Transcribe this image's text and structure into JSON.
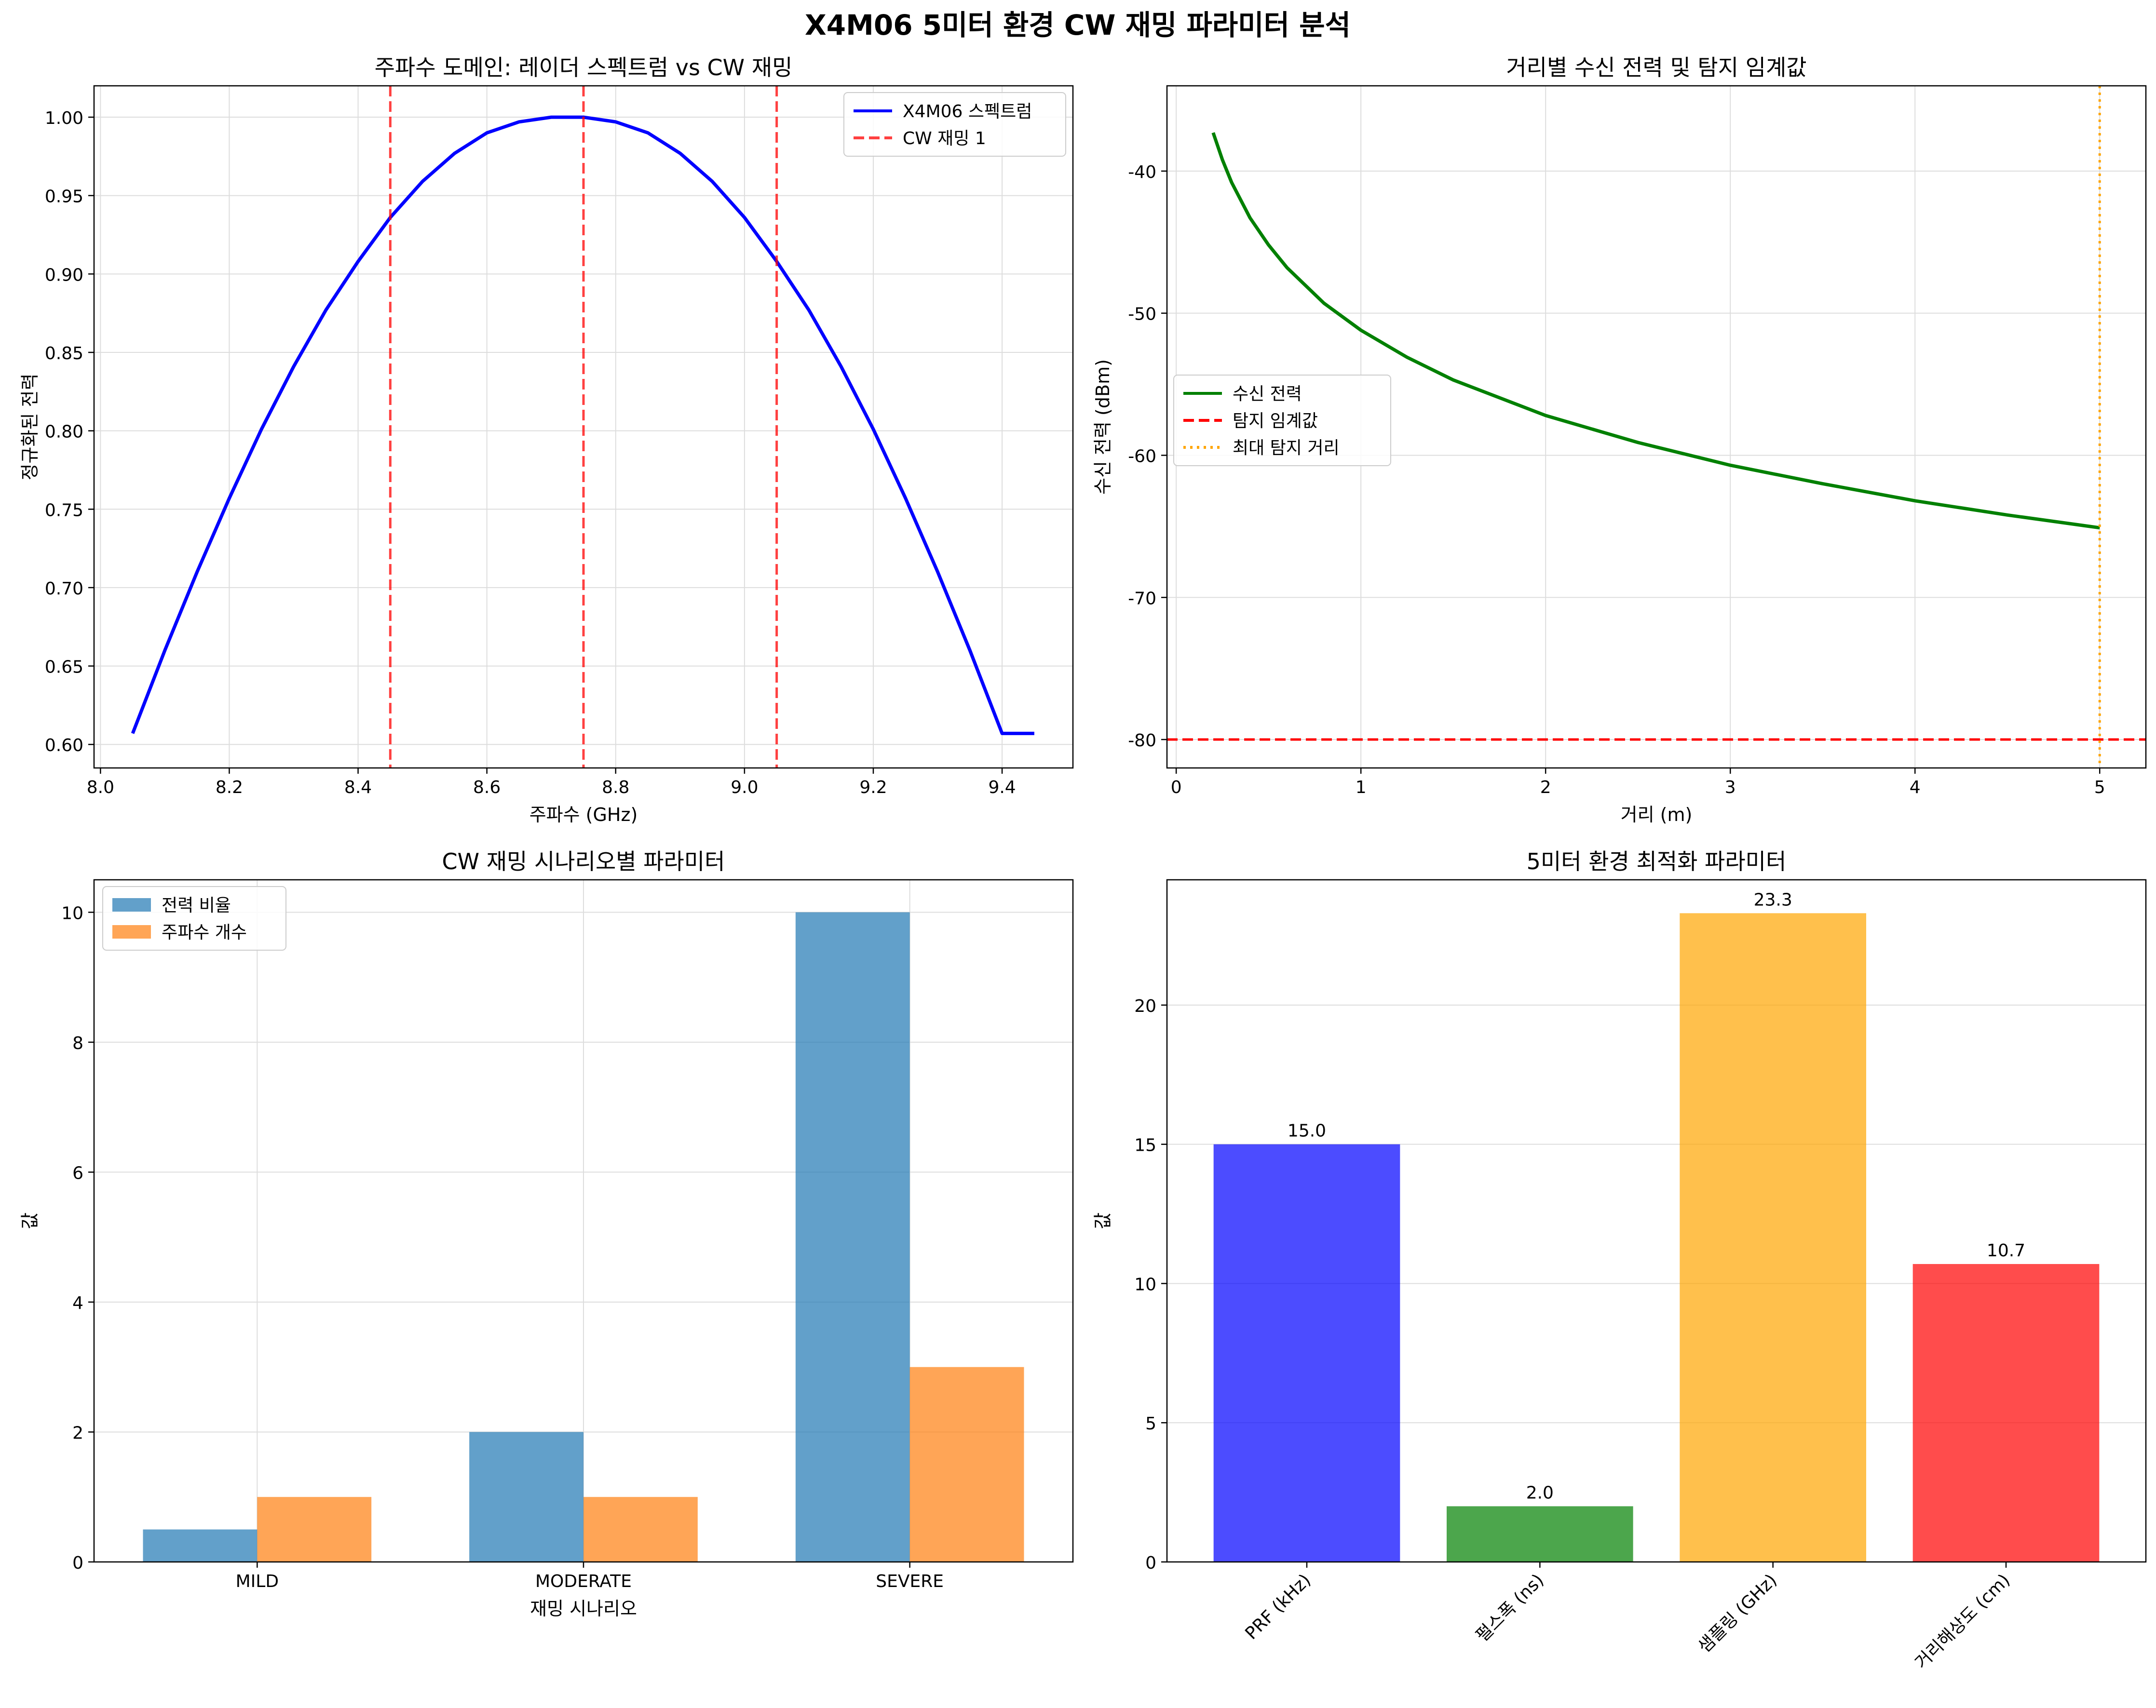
{
  "figure": {
    "suptitle": "X4M06 5미터 환경 CW 재밍 파라미터 분석"
  },
  "colors": {
    "spectrum": "#0000ff",
    "jamming": "#ff0000",
    "received": "#008000",
    "threshold": "#ff0000",
    "maxrange": "#ffa500",
    "power_ratio": "#1f77b4",
    "freq_count": "#ff7f0e",
    "prf": "#0000ff",
    "pulse": "#008000",
    "sampling": "#ffa500",
    "resolution": "#ff0000",
    "grid": "#dddddd"
  },
  "chart_data": [
    {
      "id": "spectrum",
      "type": "line",
      "title": "주파수 도메인: 레이더 스펙트럼 vs CW 재밍",
      "xlabel": "주파수 (GHz)",
      "ylabel": "정규화된 전력",
      "xlim": [
        7.99,
        9.51
      ],
      "ylim": [
        0.585,
        1.02
      ],
      "xticks": [
        8.0,
        8.2,
        8.4,
        8.6,
        8.8,
        9.0,
        9.2,
        9.4
      ],
      "xtick_labels": [
        "8.0",
        "8.2",
        "8.4",
        "8.6",
        "8.8",
        "9.0",
        "9.2",
        "9.4"
      ],
      "yticks": [
        0.6,
        0.65,
        0.7,
        0.75,
        0.8,
        0.85,
        0.9,
        0.95,
        1.0
      ],
      "ytick_labels": [
        "0.60",
        "0.65",
        "0.70",
        "0.75",
        "0.80",
        "0.85",
        "0.90",
        "0.95",
        "1.00"
      ],
      "grid": true,
      "legend_position": "top-right",
      "series": [
        {
          "name": "X4M06 스펙트럼",
          "style": "solid",
          "x": [
            8.05,
            8.1,
            8.15,
            8.2,
            8.25,
            8.3,
            8.35,
            8.4,
            8.45,
            8.5,
            8.55,
            8.6,
            8.65,
            8.7,
            8.75,
            8.8,
            8.85,
            8.9,
            8.95,
            9.0,
            9.05,
            9.1,
            9.15,
            9.2,
            9.25,
            9.3,
            9.35,
            9.4,
            9.45
          ],
          "y": [
            0.607,
            0.66,
            0.71,
            0.757,
            0.801,
            0.841,
            0.877,
            0.908,
            0.936,
            0.959,
            0.977,
            0.99,
            0.997,
            1.0,
            1.0,
            0.997,
            0.99,
            0.977,
            0.959,
            0.936,
            0.908,
            0.877,
            0.841,
            0.801,
            0.757,
            0.71,
            0.66,
            0.607,
            0.607
          ]
        }
      ],
      "vlines": {
        "name": "CW 재밍 1",
        "x": [
          8.45,
          8.75,
          9.05
        ]
      }
    },
    {
      "id": "distance",
      "type": "line",
      "title": "거리별 수신 전력 및 탐지 임계값",
      "xlabel": "거리 (m)",
      "ylabel": "수신 전력 (dBm)",
      "xlim": [
        -0.05,
        5.25
      ],
      "ylim": [
        -82,
        -34
      ],
      "xticks": [
        0,
        1,
        2,
        3,
        4,
        5
      ],
      "xtick_labels": [
        "0",
        "1",
        "2",
        "3",
        "4",
        "5"
      ],
      "yticks": [
        -80,
        -70,
        -60,
        -50,
        -40
      ],
      "ytick_labels": [
        "-80",
        "-70",
        "-60",
        "-50",
        "-40"
      ],
      "grid": true,
      "legend_position": "center-left",
      "series": [
        {
          "name": "수신 전력",
          "style": "solid",
          "x": [
            0.2,
            0.25,
            0.3,
            0.4,
            0.5,
            0.6,
            0.8,
            1.0,
            1.25,
            1.5,
            2.0,
            2.5,
            3.0,
            3.5,
            4.0,
            4.5,
            5.0
          ],
          "y": [
            -37.3,
            -39.2,
            -40.8,
            -43.3,
            -45.2,
            -46.8,
            -49.3,
            -51.2,
            -53.1,
            -54.7,
            -57.2,
            -59.1,
            -60.7,
            -62.0,
            -63.2,
            -64.2,
            -65.1
          ]
        }
      ],
      "threshold": {
        "name": "탐지 임계값",
        "y": -80
      },
      "max_range": {
        "name": "최대 탐지 거리",
        "x": 5.0
      }
    },
    {
      "id": "scenarios",
      "type": "bar",
      "title": "CW 재밍 시나리오별 파라미터",
      "xlabel": "재밍 시나리오",
      "ylabel": "값",
      "categories": [
        "MILD",
        "MODERATE",
        "SEVERE"
      ],
      "ylim": [
        0,
        10.5
      ],
      "yticks": [
        0,
        2,
        4,
        6,
        8,
        10
      ],
      "ytick_labels": [
        "0",
        "2",
        "4",
        "6",
        "8",
        "10"
      ],
      "grid": true,
      "legend_position": "top-left",
      "series": [
        {
          "name": "전력 비율",
          "values": [
            0.5,
            2,
            10
          ]
        },
        {
          "name": "주파수 개수",
          "values": [
            1,
            1,
            3
          ]
        }
      ]
    },
    {
      "id": "optimization",
      "type": "bar",
      "title": "5미터 환경 최적화 파라미터",
      "xlabel": "",
      "ylabel": "값",
      "categories": [
        "PRF (kHz)",
        "펄스폭 (ns)",
        "샘플링 (GHz)",
        "거리해상도 (cm)"
      ],
      "values": [
        15.0,
        2.0,
        23.3,
        10.7
      ],
      "data_labels": [
        "15.0",
        "2.0",
        "23.3",
        "10.7"
      ],
      "ylim": [
        0,
        24.5
      ],
      "yticks": [
        0,
        5,
        10,
        15,
        20
      ],
      "ytick_labels": [
        "0",
        "5",
        "10",
        "15",
        "20"
      ],
      "grid": true
    }
  ]
}
